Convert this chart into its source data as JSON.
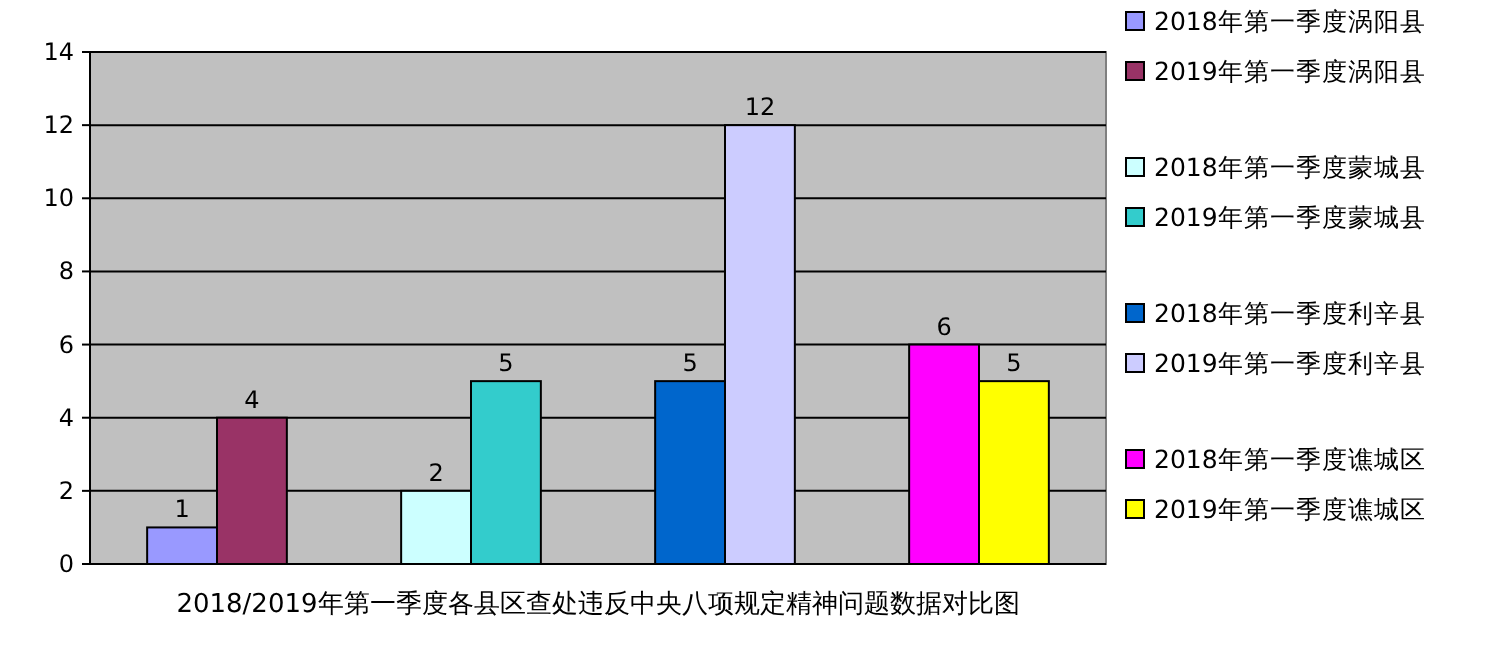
{
  "chart_data": {
    "type": "bar",
    "xlabel": "2018/2019年第一季度各县区查处违反中央八项规定精神问题数据对比图",
    "categories": [
      null,
      null,
      null,
      null
    ],
    "series": [
      {
        "name": "2018年第一季度涡阳县",
        "color": "#9999ff",
        "values": [
          1,
          null,
          null,
          null
        ]
      },
      {
        "name": "2019年第一季度涡阳县",
        "color": "#993366",
        "values": [
          4,
          null,
          null,
          null
        ]
      },
      {
        "name": "2018年第一季度蒙城县",
        "color": "#ccffff",
        "values": [
          null,
          2,
          null,
          null
        ]
      },
      {
        "name": "2019年第一季度蒙城县",
        "color": "#33cccc",
        "values": [
          null,
          5,
          null,
          null
        ]
      },
      {
        "name": "2018年第一季度利辛县",
        "color": "#0066cc",
        "values": [
          null,
          null,
          5,
          null
        ]
      },
      {
        "name": "2019年第一季度利辛县",
        "color": "#ccccff",
        "values": [
          null,
          null,
          12,
          null
        ]
      },
      {
        "name": "2018年第一季度谯城区",
        "color": "#ff00ff",
        "values": [
          null,
          null,
          null,
          6
        ]
      },
      {
        "name": "2019年第一季度谯城区",
        "color": "#ffff00",
        "values": [
          null,
          null,
          null,
          5
        ]
      }
    ],
    "ylim": [
      0,
      14
    ],
    "yticks": [
      0,
      2,
      4,
      6,
      8,
      10,
      12,
      14
    ],
    "grid": "y",
    "legend": "right",
    "data_labels": true
  }
}
